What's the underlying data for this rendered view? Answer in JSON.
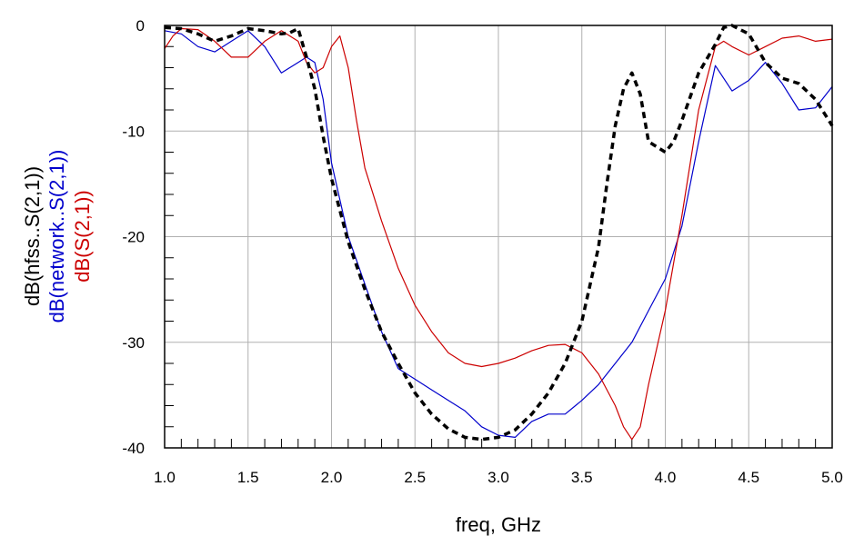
{
  "chart_data": {
    "type": "line",
    "xlabel": "freq, GHz",
    "xlim": [
      1.0,
      5.0
    ],
    "ylim": [
      -40,
      0
    ],
    "grid": true,
    "x_ticks": [
      {
        "value": 1.0,
        "label": "1.0"
      },
      {
        "value": 1.5,
        "label": "1.5"
      },
      {
        "value": 2.0,
        "label": "2.0"
      },
      {
        "value": 2.5,
        "label": "2.5"
      },
      {
        "value": 3.0,
        "label": "3.0"
      },
      {
        "value": 3.5,
        "label": "3.5"
      },
      {
        "value": 4.0,
        "label": "4.0"
      },
      {
        "value": 4.5,
        "label": "4.5"
      },
      {
        "value": 5.0,
        "label": "5.0"
      }
    ],
    "y_ticks": [
      {
        "value": 0,
        "label": "0"
      },
      {
        "value": -10,
        "label": "-10"
      },
      {
        "value": -20,
        "label": "-20"
      },
      {
        "value": -30,
        "label": "-30"
      },
      {
        "value": -40,
        "label": "-40"
      }
    ],
    "series": [
      {
        "name": "dB(hfss..S(2,1))",
        "color": "#000000",
        "dashed": true,
        "points": [
          [
            1.0,
            -0.2
          ],
          [
            1.1,
            -0.3
          ],
          [
            1.2,
            -0.8
          ],
          [
            1.3,
            -1.5
          ],
          [
            1.4,
            -1.0
          ],
          [
            1.5,
            -0.3
          ],
          [
            1.6,
            -0.5
          ],
          [
            1.7,
            -0.8
          ],
          [
            1.75,
            -0.7
          ],
          [
            1.8,
            -0.3
          ],
          [
            1.85,
            -3.0
          ],
          [
            1.9,
            -6.0
          ],
          [
            1.95,
            -10.5
          ],
          [
            2.0,
            -14.5
          ],
          [
            2.1,
            -20.5
          ],
          [
            2.2,
            -25.0
          ],
          [
            2.3,
            -29.0
          ],
          [
            2.4,
            -32.0
          ],
          [
            2.5,
            -34.8
          ],
          [
            2.6,
            -36.8
          ],
          [
            2.7,
            -38.2
          ],
          [
            2.8,
            -39.0
          ],
          [
            2.9,
            -39.2
          ],
          [
            3.0,
            -39.0
          ],
          [
            3.1,
            -38.3
          ],
          [
            3.2,
            -36.8
          ],
          [
            3.3,
            -34.8
          ],
          [
            3.4,
            -32.0
          ],
          [
            3.5,
            -28.0
          ],
          [
            3.6,
            -21.0
          ],
          [
            3.65,
            -15.0
          ],
          [
            3.7,
            -9.5
          ],
          [
            3.75,
            -6.0
          ],
          [
            3.8,
            -4.5
          ],
          [
            3.85,
            -6.5
          ],
          [
            3.9,
            -11.0
          ],
          [
            3.95,
            -11.5
          ],
          [
            4.0,
            -12.0
          ],
          [
            4.05,
            -11.0
          ],
          [
            4.1,
            -9.0
          ],
          [
            4.2,
            -4.5
          ],
          [
            4.3,
            -1.8
          ],
          [
            4.35,
            -0.2
          ],
          [
            4.4,
            0.0
          ],
          [
            4.5,
            -0.8
          ],
          [
            4.6,
            -3.5
          ],
          [
            4.7,
            -5.0
          ],
          [
            4.8,
            -5.5
          ],
          [
            4.9,
            -7.0
          ],
          [
            5.0,
            -9.5
          ]
        ]
      },
      {
        "name": "dB(network..S(2,1))",
        "color": "#0000cc",
        "dashed": false,
        "points": [
          [
            1.0,
            -0.5
          ],
          [
            1.1,
            -0.8
          ],
          [
            1.2,
            -2.0
          ],
          [
            1.3,
            -2.5
          ],
          [
            1.4,
            -1.5
          ],
          [
            1.5,
            -0.5
          ],
          [
            1.6,
            -2.0
          ],
          [
            1.7,
            -4.5
          ],
          [
            1.8,
            -3.5
          ],
          [
            1.85,
            -3.0
          ],
          [
            1.9,
            -3.5
          ],
          [
            1.95,
            -7.0
          ],
          [
            2.0,
            -13.0
          ],
          [
            2.1,
            -20.0
          ],
          [
            2.2,
            -24.5
          ],
          [
            2.3,
            -29.0
          ],
          [
            2.4,
            -32.5
          ],
          [
            2.5,
            -33.5
          ],
          [
            2.6,
            -34.5
          ],
          [
            2.7,
            -35.5
          ],
          [
            2.8,
            -36.5
          ],
          [
            2.9,
            -38.0
          ],
          [
            3.0,
            -38.8
          ],
          [
            3.1,
            -39.0
          ],
          [
            3.2,
            -37.5
          ],
          [
            3.3,
            -36.8
          ],
          [
            3.4,
            -36.8
          ],
          [
            3.5,
            -35.5
          ],
          [
            3.6,
            -34.0
          ],
          [
            3.7,
            -32.0
          ],
          [
            3.8,
            -30.0
          ],
          [
            3.9,
            -27.0
          ],
          [
            4.0,
            -24.0
          ],
          [
            4.1,
            -19.0
          ],
          [
            4.2,
            -11.0
          ],
          [
            4.3,
            -3.8
          ],
          [
            4.4,
            -6.2
          ],
          [
            4.5,
            -5.2
          ],
          [
            4.6,
            -3.5
          ],
          [
            4.7,
            -5.5
          ],
          [
            4.8,
            -8.0
          ],
          [
            4.9,
            -7.8
          ],
          [
            5.0,
            -5.8
          ]
        ]
      },
      {
        "name": "dB(S(2,1))",
        "color": "#cc0000",
        "dashed": false,
        "points": [
          [
            1.0,
            -2.2
          ],
          [
            1.05,
            -1.0
          ],
          [
            1.1,
            -0.3
          ],
          [
            1.2,
            -0.4
          ],
          [
            1.3,
            -1.5
          ],
          [
            1.4,
            -3.0
          ],
          [
            1.5,
            -3.0
          ],
          [
            1.6,
            -1.5
          ],
          [
            1.7,
            -0.5
          ],
          [
            1.8,
            -1.5
          ],
          [
            1.85,
            -3.5
          ],
          [
            1.9,
            -4.5
          ],
          [
            1.95,
            -4.0
          ],
          [
            2.0,
            -2.0
          ],
          [
            2.05,
            -1.0
          ],
          [
            2.1,
            -4.0
          ],
          [
            2.15,
            -9.0
          ],
          [
            2.2,
            -13.5
          ],
          [
            2.3,
            -18.5
          ],
          [
            2.4,
            -23.0
          ],
          [
            2.5,
            -26.5
          ],
          [
            2.6,
            -29.0
          ],
          [
            2.7,
            -31.0
          ],
          [
            2.8,
            -32.0
          ],
          [
            2.9,
            -32.3
          ],
          [
            3.0,
            -32.0
          ],
          [
            3.1,
            -31.5
          ],
          [
            3.2,
            -30.8
          ],
          [
            3.3,
            -30.3
          ],
          [
            3.4,
            -30.2
          ],
          [
            3.5,
            -31.0
          ],
          [
            3.6,
            -33.0
          ],
          [
            3.7,
            -36.0
          ],
          [
            3.75,
            -38.0
          ],
          [
            3.8,
            -39.2
          ],
          [
            3.85,
            -38.0
          ],
          [
            3.9,
            -34.0
          ],
          [
            4.0,
            -27.0
          ],
          [
            4.1,
            -18.0
          ],
          [
            4.2,
            -8.0
          ],
          [
            4.3,
            -2.0
          ],
          [
            4.35,
            -1.5
          ],
          [
            4.4,
            -2.0
          ],
          [
            4.5,
            -2.8
          ],
          [
            4.6,
            -2.0
          ],
          [
            4.7,
            -1.2
          ],
          [
            4.8,
            -1.0
          ],
          [
            4.9,
            -1.5
          ],
          [
            5.0,
            -1.3
          ]
        ]
      }
    ]
  }
}
